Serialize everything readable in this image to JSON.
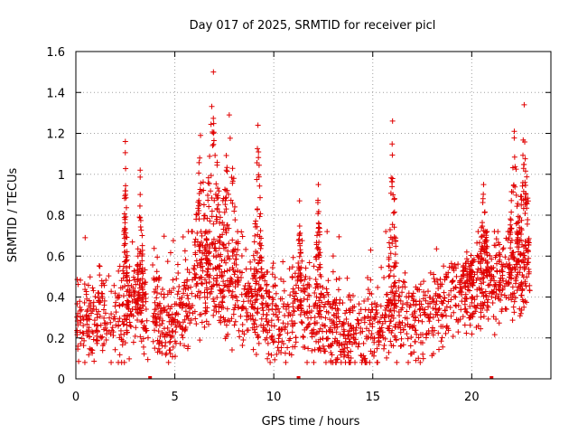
{
  "chart_data": {
    "type": "scatter",
    "title": "Day 017 of 2025, SRMTID for receiver picl",
    "xlabel": "GPS time / hours",
    "ylabel": "SRMTID / TECUs",
    "xlim": [
      0,
      24
    ],
    "ylim": [
      0,
      1.6
    ],
    "xticks": [
      0,
      5,
      10,
      15,
      20
    ],
    "xtick_labels": [
      "0",
      "5",
      "10",
      "15",
      "20"
    ],
    "yticks": [
      0,
      0.2,
      0.4,
      0.6,
      0.8,
      1.0,
      1.2,
      1.4,
      1.6
    ],
    "ytick_labels": [
      "0",
      "0.2",
      "0.4",
      "0.6",
      "0.8",
      "1",
      "1.2",
      "1.4",
      "1.6"
    ],
    "grid": true,
    "marker": "+",
    "color": "#e00000",
    "seed": 17,
    "baseline_profile": [
      [
        0.0,
        0.3
      ],
      [
        1.0,
        0.27
      ],
      [
        2.0,
        0.28
      ],
      [
        3.0,
        0.36
      ],
      [
        4.0,
        0.33
      ],
      [
        5.0,
        0.3
      ],
      [
        6.0,
        0.45
      ],
      [
        7.0,
        0.52
      ],
      [
        8.0,
        0.44
      ],
      [
        9.0,
        0.36
      ],
      [
        10.0,
        0.3
      ],
      [
        11.0,
        0.33
      ],
      [
        12.0,
        0.32
      ],
      [
        13.0,
        0.22
      ],
      [
        14.0,
        0.22
      ],
      [
        15.0,
        0.25
      ],
      [
        16.0,
        0.3
      ],
      [
        17.0,
        0.28
      ],
      [
        18.0,
        0.32
      ],
      [
        19.0,
        0.4
      ],
      [
        20.0,
        0.45
      ],
      [
        21.0,
        0.5
      ],
      [
        22.0,
        0.48
      ],
      [
        23.0,
        0.55
      ]
    ],
    "spikes": [
      {
        "x": [
          2.4,
          2.6
        ],
        "peak": 1.16
      },
      {
        "x": [
          3.1,
          3.4
        ],
        "peak": 1.02
      },
      {
        "x": [
          6.0,
          6.6
        ],
        "peak": 1.19
      },
      {
        "x": [
          6.6,
          7.3
        ],
        "peak": 1.5
      },
      {
        "x": [
          7.3,
          8.2
        ],
        "peak": 1.29
      },
      {
        "x": [
          9.0,
          9.4
        ],
        "peak": 1.24
      },
      {
        "x": [
          11.2,
          11.4
        ],
        "peak": 0.87
      },
      {
        "x": [
          12.1,
          12.4
        ],
        "peak": 0.95
      },
      {
        "x": [
          15.8,
          16.2
        ],
        "peak": 1.26
      },
      {
        "x": [
          19.4,
          20.1
        ],
        "peak": 0.62
      },
      {
        "x": [
          20.4,
          20.8
        ],
        "peak": 0.95
      },
      {
        "x": [
          21.9,
          22.4
        ],
        "peak": 1.21
      },
      {
        "x": [
          22.4,
          22.9
        ],
        "peak": 1.34
      }
    ],
    "gaps": [
      [
        3.65,
        3.85
      ],
      [
        11.15,
        11.35
      ]
    ],
    "data_gap_markers": [
      3.75,
      11.25,
      21.0
    ]
  }
}
